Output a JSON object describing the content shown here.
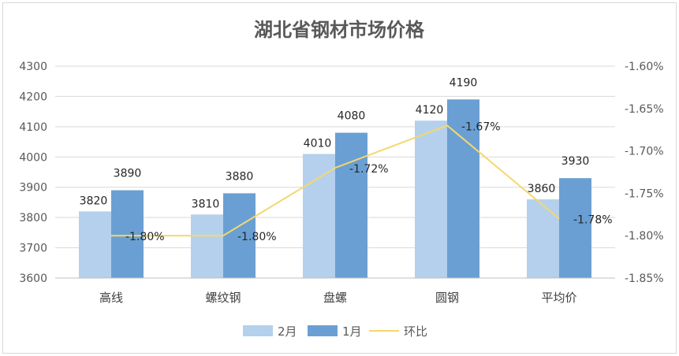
{
  "chart_data": {
    "type": "bar",
    "title": "湖北省钢材市场价格",
    "categories": [
      "高线",
      "螺纹钢",
      "盘螺",
      "圆钢",
      "平均价"
    ],
    "series": [
      {
        "name": "2月",
        "type": "bar",
        "axis": "left",
        "values": [
          3820,
          3810,
          4010,
          4120,
          3860
        ],
        "labels": [
          "3820",
          "3810",
          "4010",
          "4120",
          "3860"
        ],
        "color": "#b4d0ec"
      },
      {
        "name": "1月",
        "type": "bar",
        "axis": "left",
        "values": [
          3890,
          3880,
          4080,
          4190,
          3930
        ],
        "labels": [
          "3890",
          "3880",
          "4080",
          "4190",
          "3930"
        ],
        "color": "#6a9fd3"
      },
      {
        "name": "环比",
        "type": "line",
        "axis": "right",
        "values": [
          -1.8,
          -1.8,
          -1.72,
          -1.67,
          -1.78
        ],
        "labels": [
          "-1.80%",
          "-1.80%",
          "-1.72%",
          "-1.67%",
          "-1.78%"
        ],
        "color": "#f5d76e"
      }
    ],
    "yleft": {
      "min": 3600,
      "max": 4300,
      "step": 100,
      "ticks": [
        "3600",
        "3700",
        "3800",
        "3900",
        "4000",
        "4100",
        "4200",
        "4300"
      ]
    },
    "yright": {
      "min": -1.85,
      "max": -1.6,
      "step": 0.05,
      "ticks": [
        "-1.85%",
        "-1.80%",
        "-1.75%",
        "-1.70%",
        "-1.65%",
        "-1.60%"
      ]
    },
    "grid": true,
    "legend": "bottom"
  }
}
